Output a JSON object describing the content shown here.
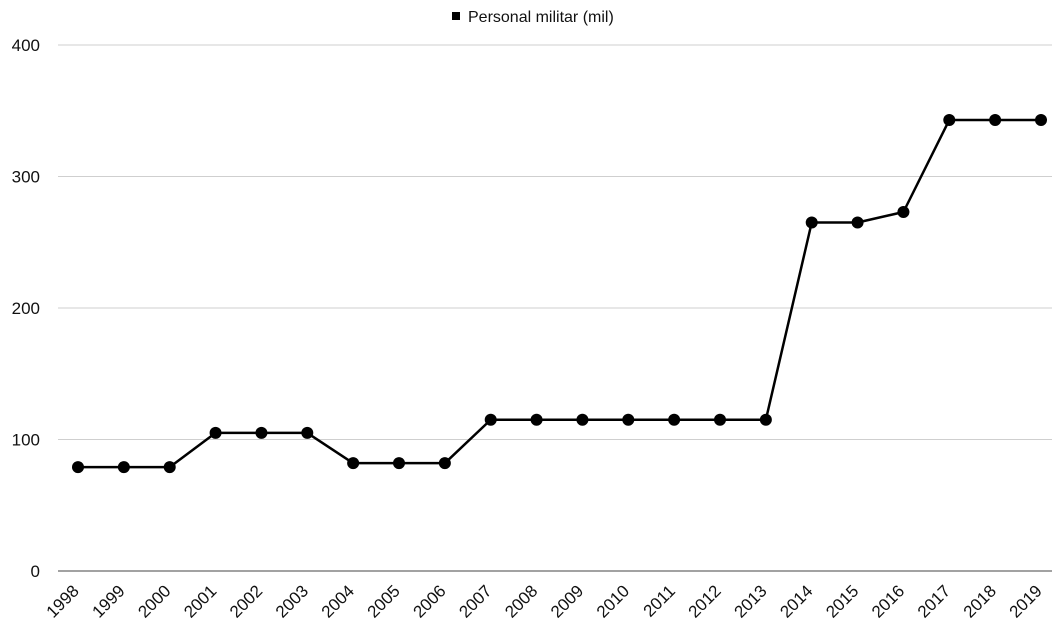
{
  "chart_data": {
    "type": "line",
    "title": "",
    "xlabel": "",
    "ylabel": "",
    "ylim": [
      0,
      400
    ],
    "yticks": [
      0,
      100,
      200,
      300,
      400
    ],
    "grid": true,
    "legend_position": "top-center",
    "categories": [
      "1998",
      "1999",
      "2000",
      "2001",
      "2002",
      "2003",
      "2004",
      "2005",
      "2006",
      "2007",
      "2008",
      "2009",
      "2010",
      "2011",
      "2012",
      "2013",
      "2014",
      "2015",
      "2016",
      "2017",
      "2018",
      "2019"
    ],
    "series": [
      {
        "name": "Personal militar (mil)",
        "color": "#000000",
        "values": [
          79,
          79,
          79,
          105,
          105,
          105,
          82,
          82,
          82,
          115,
          115,
          115,
          115,
          115,
          115,
          115,
          265,
          265,
          273,
          343,
          343,
          343
        ]
      }
    ]
  }
}
